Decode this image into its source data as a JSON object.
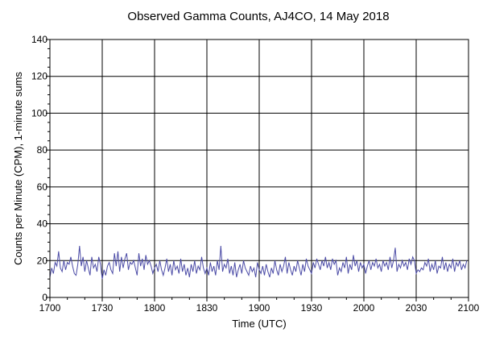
{
  "chart_data": {
    "type": "line",
    "title": "Observed Gamma Counts, AJ4CO, 14 May 2018",
    "xlabel": "Time (UTC)",
    "ylabel": "Counts per Minute (CPM), 1-minute sums",
    "x_tick_labels": [
      "1700",
      "1730",
      "1800",
      "1830",
      "1900",
      "1930",
      "2000",
      "2030",
      "2100"
    ],
    "y_tick_labels": [
      "0",
      "20",
      "40",
      "60",
      "80",
      "100",
      "120",
      "140"
    ],
    "xlim_minutes": [
      0,
      240
    ],
    "ylim": [
      0,
      140
    ],
    "grid": true,
    "series_color": "#4b4ba6",
    "series": [
      {
        "values": [
          11,
          16,
          13,
          19,
          17,
          25,
          16,
          14,
          20,
          15,
          19,
          18,
          22,
          17,
          13,
          12,
          18,
          28,
          17,
          22,
          14,
          20,
          16,
          12,
          22,
          16,
          18,
          14,
          22,
          18,
          10,
          15,
          12,
          17,
          19,
          15,
          13,
          24,
          17,
          25,
          14,
          22,
          16,
          21,
          24,
          15,
          19,
          18,
          20,
          16,
          12,
          24,
          17,
          21,
          15,
          23,
          18,
          20,
          17,
          13,
          16,
          18,
          14,
          20,
          15,
          12,
          16,
          21,
          14,
          18,
          12,
          20,
          15,
          17,
          13,
          21,
          14,
          18,
          12,
          16,
          11,
          18,
          14,
          20,
          13,
          17,
          15,
          22,
          16,
          13,
          16,
          12,
          19,
          14,
          17,
          12,
          20,
          15,
          28,
          14,
          18,
          16,
          21,
          13,
          17,
          12,
          19,
          11,
          15,
          18,
          13,
          20,
          16,
          14,
          12,
          17,
          14,
          16,
          11,
          19,
          15,
          13,
          17,
          12,
          18,
          14,
          11,
          16,
          13,
          20,
          15,
          12,
          18,
          14,
          17,
          22,
          13,
          19,
          15,
          12,
          17,
          14,
          20,
          16,
          12,
          18,
          14,
          21,
          17,
          15,
          13,
          19,
          16,
          21,
          18,
          15,
          20,
          17,
          22,
          16,
          19,
          15,
          21,
          18,
          20,
          12,
          16,
          14,
          19,
          16,
          22,
          13,
          18,
          15,
          23,
          17,
          20,
          14,
          19,
          16,
          18,
          13,
          17,
          20,
          15,
          19,
          17,
          21,
          16,
          18,
          14,
          20,
          17,
          19,
          15,
          22,
          16,
          20,
          27,
          14,
          18,
          16,
          20,
          17,
          19,
          15,
          21,
          18,
          22,
          20,
          13,
          15,
          14,
          16,
          15,
          19,
          17,
          21,
          14,
          18,
          15,
          20,
          13,
          17,
          16,
          22,
          15,
          19,
          14,
          18,
          16,
          21,
          14,
          19,
          17,
          20,
          15,
          18,
          16,
          20
        ]
      }
    ]
  }
}
